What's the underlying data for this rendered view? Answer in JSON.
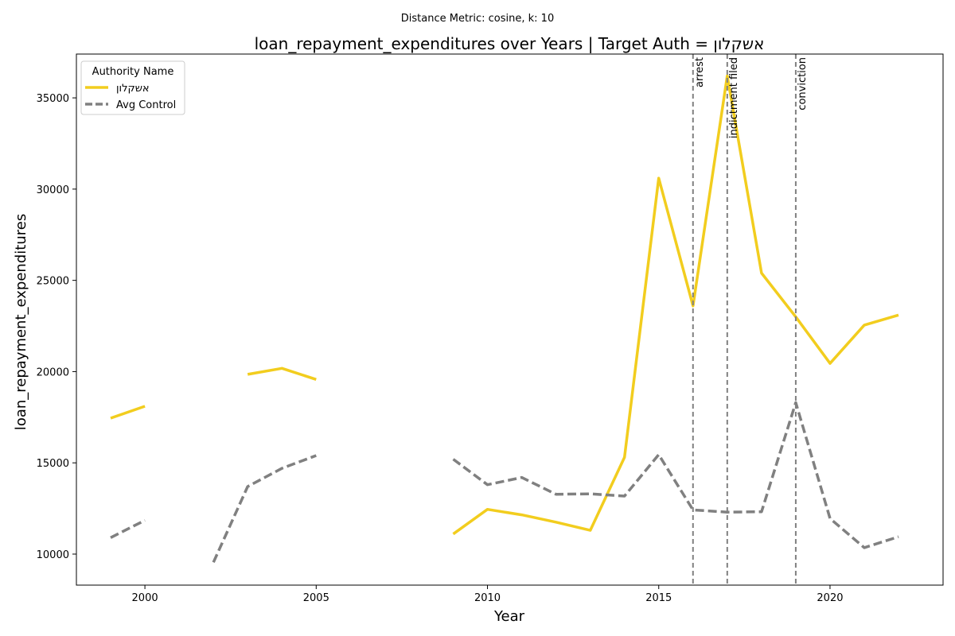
{
  "chart_data": {
    "type": "line",
    "suptitle": "Distance Metric: cosine, k: 10",
    "title": "loan_repayment_expenditures over Years | Target Auth = אשקלון",
    "xlabel": "Year",
    "ylabel": "loan_repayment_expenditures",
    "xlim": [
      1998,
      2023.3
    ],
    "ylim": [
      8300,
      37400
    ],
    "xticks": [
      2000,
      2005,
      2010,
      2015,
      2020
    ],
    "yticks": [
      10000,
      15000,
      20000,
      25000,
      30000,
      35000
    ],
    "grid": false,
    "legend": {
      "title": "Authority Name",
      "placement": "top-left"
    },
    "series": [
      {
        "name": "אשקלון",
        "color": "#f2cd1e",
        "style": "solid",
        "points": [
          [
            1999,
            17450
          ],
          [
            2000,
            18100
          ],
          [
            2001,
            null
          ],
          [
            2002,
            null
          ],
          [
            2003,
            19850
          ],
          [
            2004,
            20180
          ],
          [
            2005,
            19570
          ],
          [
            2006,
            null
          ],
          [
            2007,
            null
          ],
          [
            2008,
            null
          ],
          [
            2009,
            11100
          ],
          [
            2010,
            12450
          ],
          [
            2011,
            12150
          ],
          [
            2012,
            11750
          ],
          [
            2013,
            11300
          ],
          [
            2014,
            15300
          ],
          [
            2015,
            30600
          ],
          [
            2016,
            23600
          ],
          [
            2017,
            36200
          ],
          [
            2018,
            25400
          ],
          [
            2019,
            23000
          ],
          [
            2020,
            20450
          ],
          [
            2021,
            22550
          ],
          [
            2022,
            23100
          ]
        ]
      },
      {
        "name": "Avg Control",
        "color": "#808080",
        "style": "dashed",
        "points": [
          [
            1999,
            10900
          ],
          [
            2000,
            11850
          ],
          [
            2001,
            null
          ],
          [
            2002,
            9550
          ],
          [
            2003,
            13700
          ],
          [
            2004,
            14700
          ],
          [
            2005,
            15400
          ],
          [
            2006,
            null
          ],
          [
            2007,
            null
          ],
          [
            2008,
            null
          ],
          [
            2009,
            15200
          ],
          [
            2010,
            13800
          ],
          [
            2011,
            14200
          ],
          [
            2012,
            13280
          ],
          [
            2013,
            13300
          ],
          [
            2014,
            13180
          ],
          [
            2015,
            15450
          ],
          [
            2016,
            12420
          ],
          [
            2017,
            12300
          ],
          [
            2018,
            12320
          ],
          [
            2019,
            18300
          ],
          [
            2020,
            11950
          ],
          [
            2021,
            10350
          ],
          [
            2022,
            10950
          ]
        ]
      }
    ],
    "events": [
      {
        "year": 2016,
        "label": "arrest"
      },
      {
        "year": 2017,
        "label": "indictment filed"
      },
      {
        "year": 2019,
        "label": "conviction"
      }
    ]
  }
}
